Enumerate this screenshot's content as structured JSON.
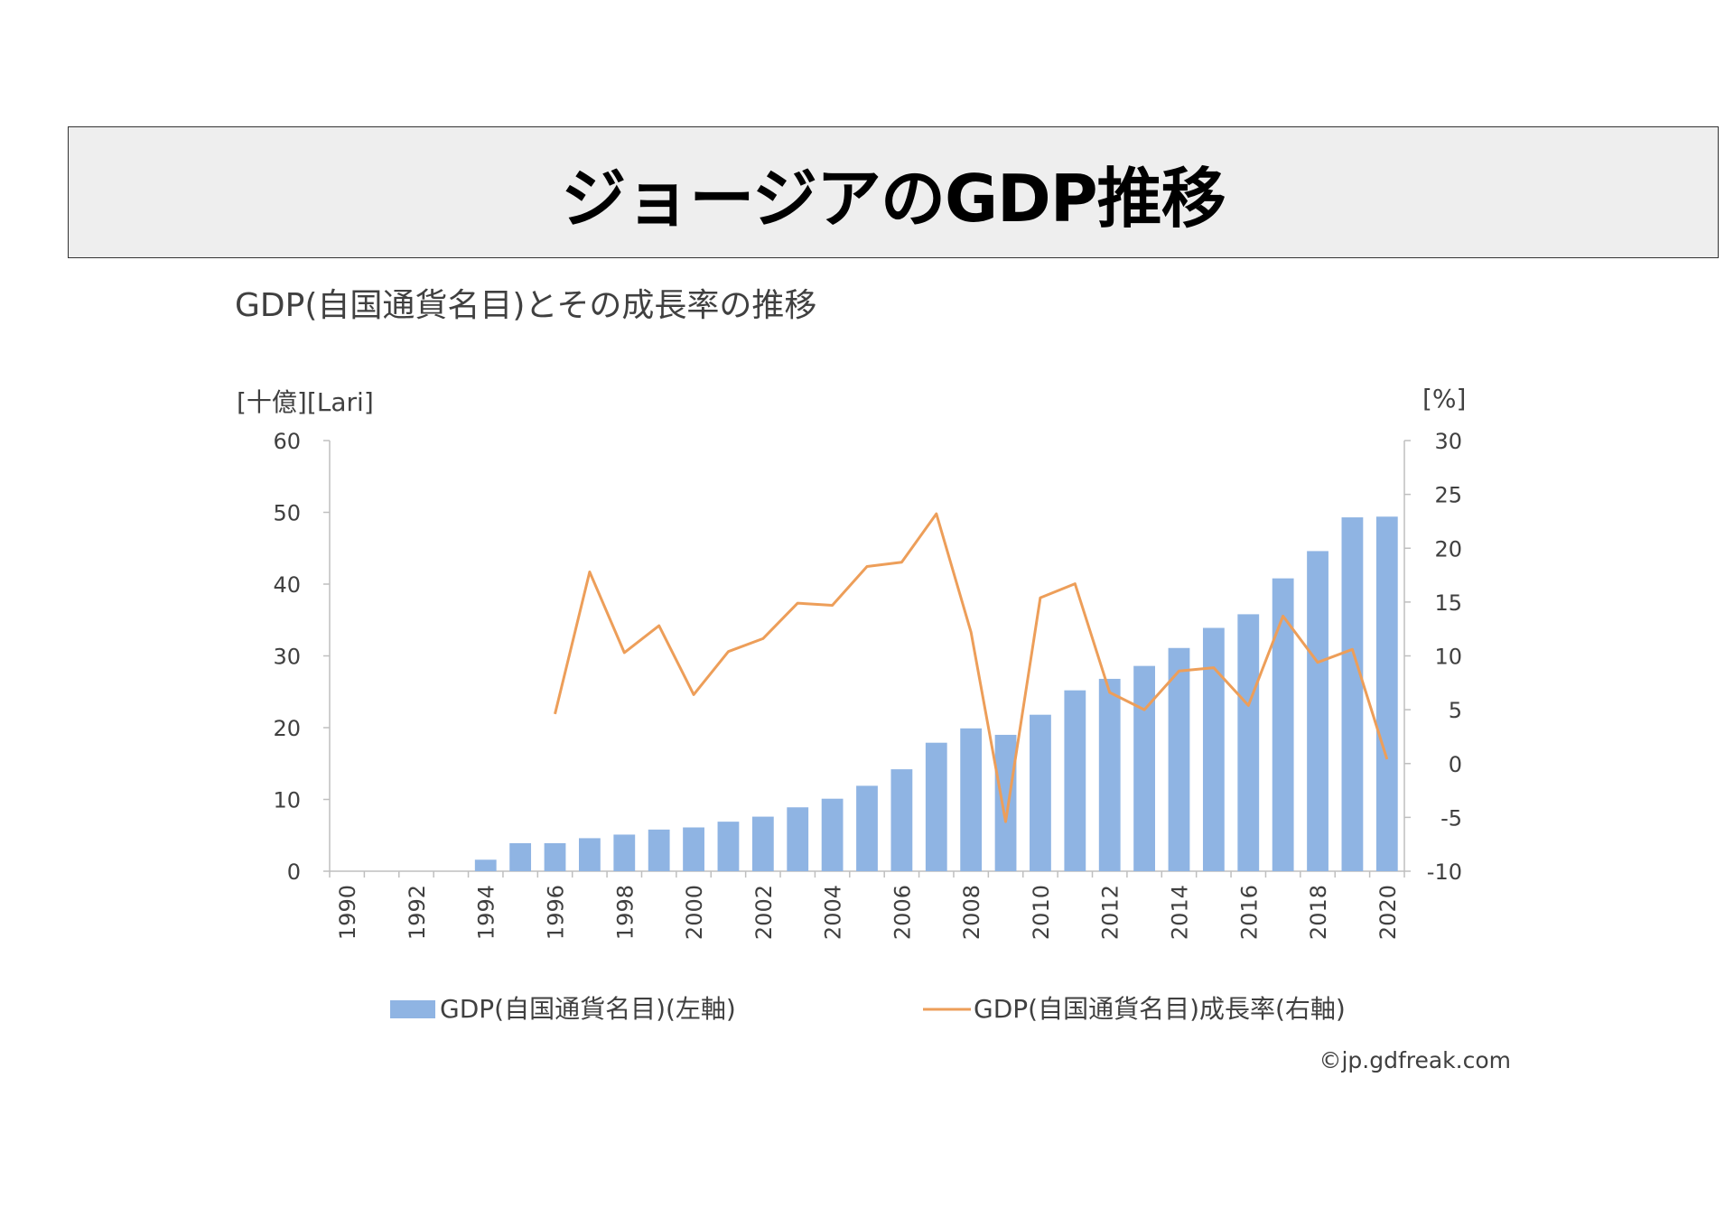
{
  "page_title": "ジョージアのGDP推移",
  "chart_data": {
    "type": "bar",
    "title": "GDP(自国通貨名目)とその成長率の推移",
    "left_axis": {
      "unit_label": "[十億][Lari]",
      "min": 0,
      "max": 60,
      "ticks": [
        "0",
        "10",
        "20",
        "30",
        "40",
        "50",
        "60"
      ]
    },
    "right_axis": {
      "unit_label": "[%]",
      "min": -10,
      "max": 30,
      "ticks": [
        "-10",
        "-5",
        "0",
        "5",
        "10",
        "15",
        "20",
        "25",
        "30"
      ]
    },
    "x": [
      1990,
      1991,
      1992,
      1993,
      1994,
      1995,
      1996,
      1997,
      1998,
      1999,
      2000,
      2001,
      2002,
      2003,
      2004,
      2005,
      2006,
      2007,
      2008,
      2009,
      2010,
      2011,
      2012,
      2013,
      2014,
      2015,
      2016,
      2017,
      2018,
      2019,
      2020
    ],
    "x_tick_labels": [
      "1990",
      "1992",
      "1994",
      "1996",
      "1998",
      "2000",
      "2002",
      "2004",
      "2006",
      "2008",
      "2010",
      "2012",
      "2014",
      "2016",
      "2018",
      "2020"
    ],
    "series": [
      {
        "name": "GDP(自国通貨名目)(左軸)",
        "type": "bar",
        "axis": "left",
        "color": "#8fb4e3",
        "values": [
          null,
          null,
          null,
          null,
          1.6,
          3.9,
          3.9,
          4.6,
          5.1,
          5.8,
          6.1,
          6.9,
          7.6,
          8.9,
          10.1,
          11.9,
          14.2,
          17.9,
          19.9,
          19.0,
          21.8,
          25.2,
          26.8,
          28.6,
          31.1,
          33.9,
          35.8,
          40.8,
          44.6,
          49.3,
          49.4
        ]
      },
      {
        "name": "GDP(自国通貨名目)成長率(右軸)",
        "type": "line",
        "axis": "right",
        "color": "#ed9e59",
        "values": [
          null,
          null,
          null,
          null,
          null,
          null,
          4.6,
          17.8,
          10.3,
          12.8,
          6.4,
          10.4,
          11.6,
          14.9,
          14.7,
          18.3,
          18.7,
          23.2,
          12.2,
          -5.4,
          15.4,
          16.7,
          6.6,
          5.0,
          8.6,
          8.9,
          5.4,
          13.7,
          9.4,
          10.6,
          0.4
        ]
      }
    ],
    "legend_position": "bottom",
    "credit": "©jp.gdfreak.com"
  }
}
